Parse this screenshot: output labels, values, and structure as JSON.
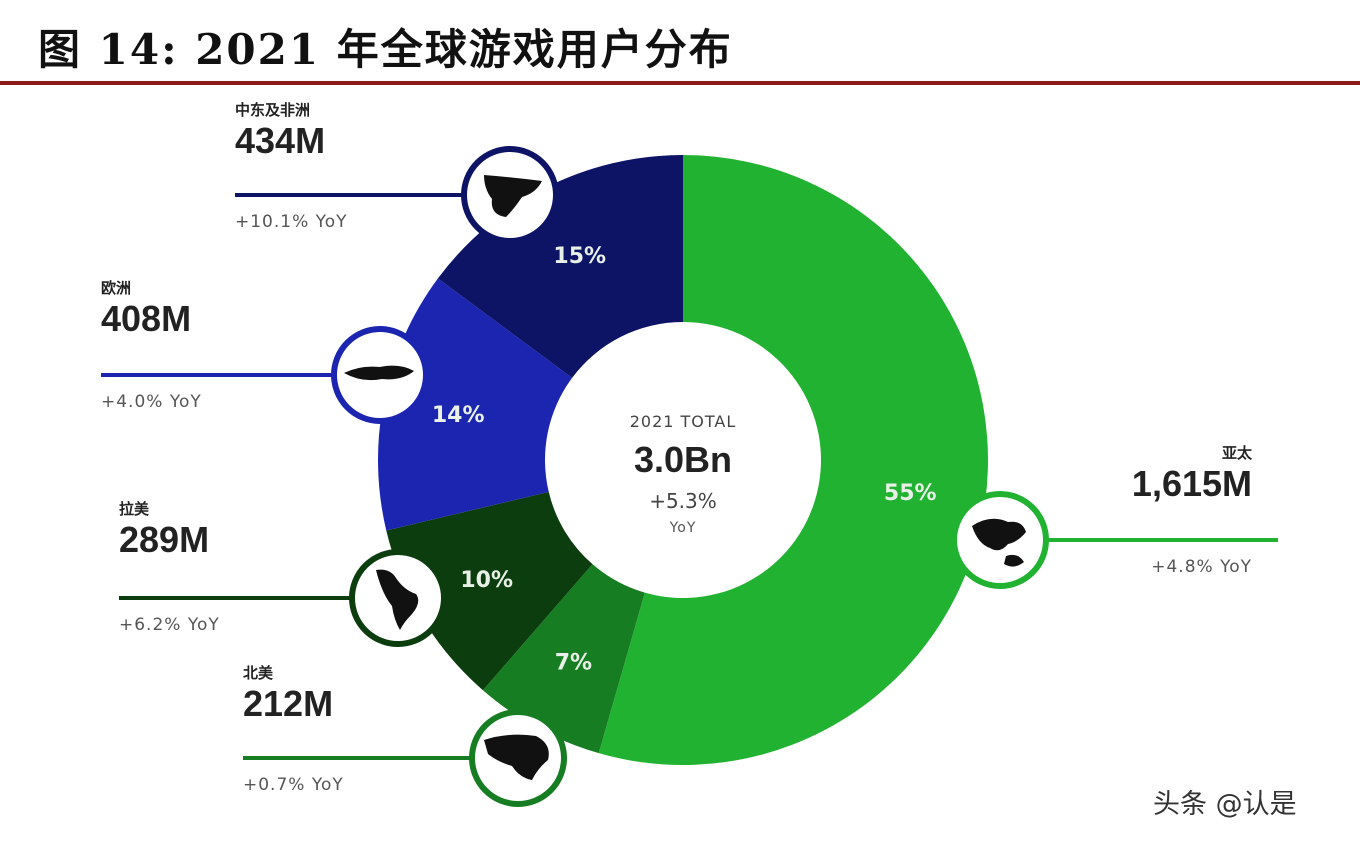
{
  "title": "图 14: 2021 年全球游戏用户分布",
  "watermark": "头条 @认是",
  "chart_data": {
    "type": "pie",
    "donut": true,
    "center": {
      "title": "2021 TOTAL",
      "value": "3.0Bn",
      "growth": "+5.3%",
      "growth_unit": "YoY"
    },
    "slices": [
      {
        "region": "亚太",
        "users": "1,615M",
        "users_m": 1615,
        "share": 55,
        "share_label": "55%",
        "yoy": "+4.8% YoY",
        "color": "#22b232"
      },
      {
        "region": "北美",
        "users": "212M",
        "users_m": 212,
        "share": 7,
        "share_label": "7%",
        "yoy": "+0.7% YoY",
        "color": "#177d22"
      },
      {
        "region": "拉美",
        "users": "289M",
        "users_m": 289,
        "share": 10,
        "share_label": "10%",
        "yoy": "+6.2% YoY",
        "color": "#0c3d0e"
      },
      {
        "region": "欧洲",
        "users": "408M",
        "users_m": 408,
        "share": 14,
        "share_label": "14%",
        "yoy": "+4.0% YoY",
        "color": "#1b25b0"
      },
      {
        "region": "中东及非洲",
        "users": "434M",
        "users_m": 434,
        "share": 15,
        "share_label": "15%",
        "yoy": "+10.1% YoY",
        "color": "#0d1466"
      }
    ],
    "icons": [
      "asia-pacific-map-icon",
      "north-america-map-icon",
      "latin-america-map-icon",
      "europe-map-icon",
      "middle-east-africa-map-icon"
    ]
  }
}
